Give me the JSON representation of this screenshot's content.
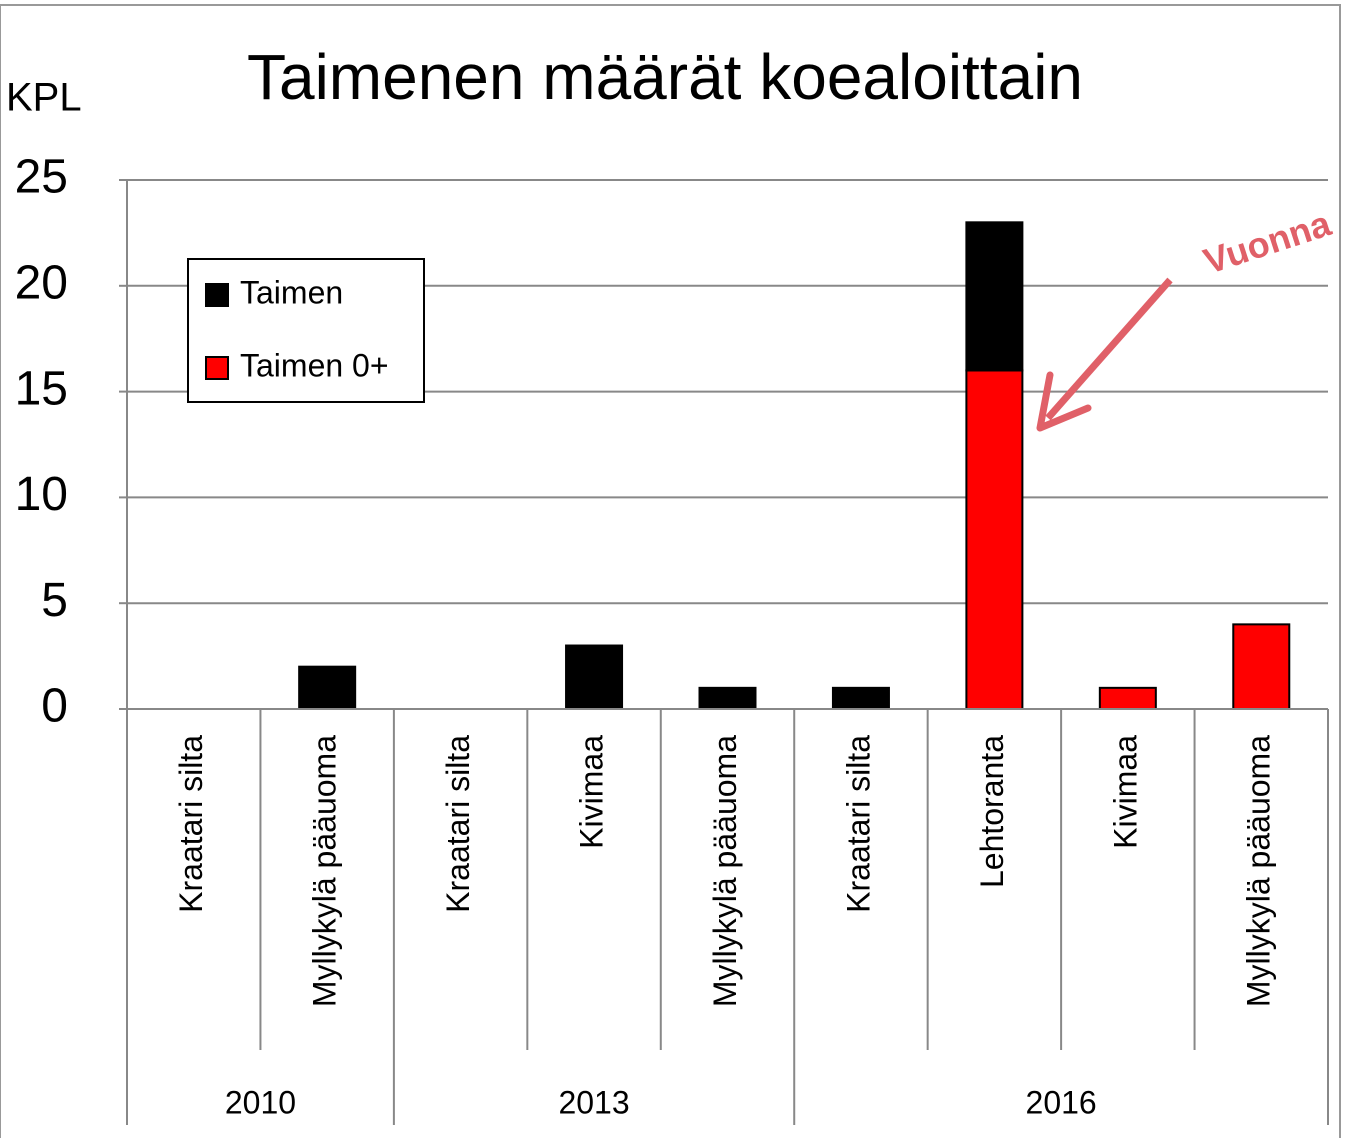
{
  "chart_data": {
    "type": "stacked_bar",
    "title": "Taimenen määrät koealoittain",
    "ylabel": "KPL",
    "groups": [
      {
        "name": "2010",
        "categories": [
          "Kraatari silta",
          "Myllykylä pääuoma"
        ]
      },
      {
        "name": "2013",
        "categories": [
          "Kraatari silta",
          "Kivimaa",
          "Myllykylä pääuoma"
        ]
      },
      {
        "name": "2016",
        "categories": [
          "Kraatari silta",
          "Lehtoranta",
          "Kivimaa",
          "Myllykylä pääuoma"
        ]
      }
    ],
    "series": [
      {
        "name": "Taimen",
        "color": "#000000",
        "values": [
          0,
          2,
          0,
          3,
          1,
          1,
          7,
          0,
          0
        ]
      },
      {
        "name": "Taimen 0+",
        "color": "#ff0000",
        "values": [
          0,
          0,
          0,
          0,
          0,
          0,
          16,
          1,
          4
        ]
      }
    ],
    "ylim": [
      0,
      25
    ],
    "yticks": [
      0,
      5,
      10,
      15,
      20,
      25
    ],
    "grid": true,
    "legend": "upper left",
    "annotation": "Vuonna"
  }
}
